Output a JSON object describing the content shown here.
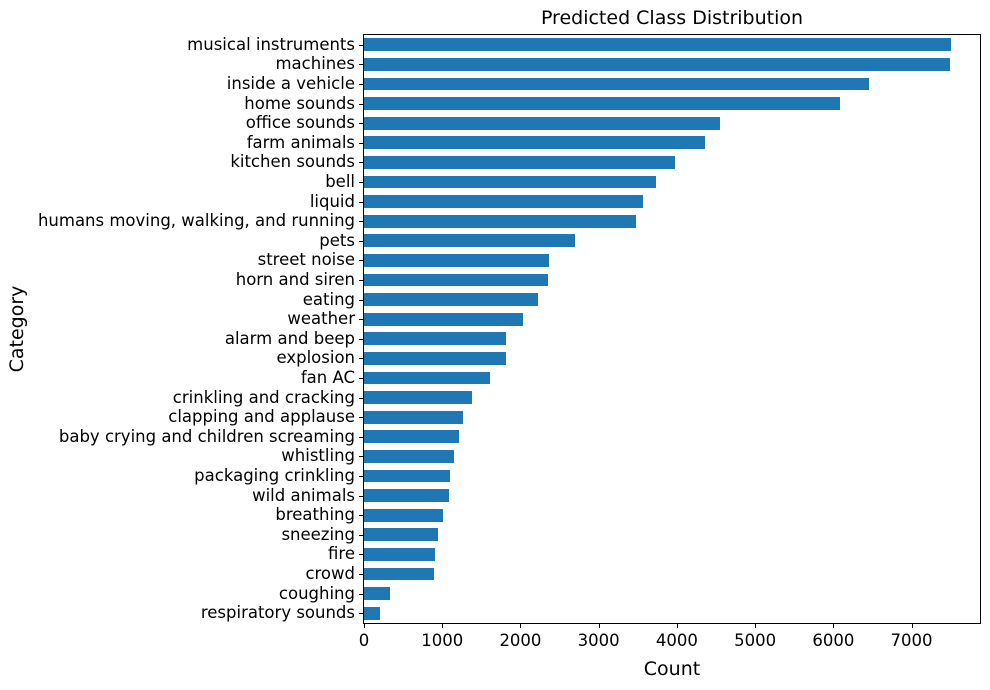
{
  "chart_data": {
    "type": "bar",
    "orientation": "horizontal",
    "title": "Predicted Class Distribution",
    "xlabel": "Count",
    "ylabel": "Category",
    "bar_color": "#1f77b4",
    "axis_color": "#000000",
    "grid": false,
    "legend": false,
    "xlim": [
      0,
      7875
    ],
    "xticks": [
      0,
      1000,
      2000,
      3000,
      4000,
      5000,
      6000,
      7000
    ],
    "categories": [
      "musical instruments",
      "machines",
      "inside a vehicle",
      "home sounds",
      "office sounds",
      "farm animals",
      "kitchen sounds",
      "bell",
      "liquid",
      "humans moving, walking, and running",
      "pets",
      "street noise",
      "horn and siren",
      "eating",
      "weather",
      "alarm and beep",
      "explosion",
      "fan AC",
      "crinkling and cracking",
      "clapping and applause",
      "baby crying and children screaming",
      "whistling",
      "packaging crinkling",
      "wild animals",
      "breathing",
      "sneezing",
      "fire",
      "crowd",
      "coughing",
      "respiratory sounds"
    ],
    "values": [
      7500,
      7490,
      6450,
      6090,
      4550,
      4360,
      3970,
      3730,
      3570,
      3480,
      2700,
      2360,
      2350,
      2230,
      2030,
      1820,
      1810,
      1610,
      1380,
      1260,
      1220,
      1150,
      1100,
      1090,
      1010,
      950,
      910,
      900,
      330,
      200
    ]
  }
}
